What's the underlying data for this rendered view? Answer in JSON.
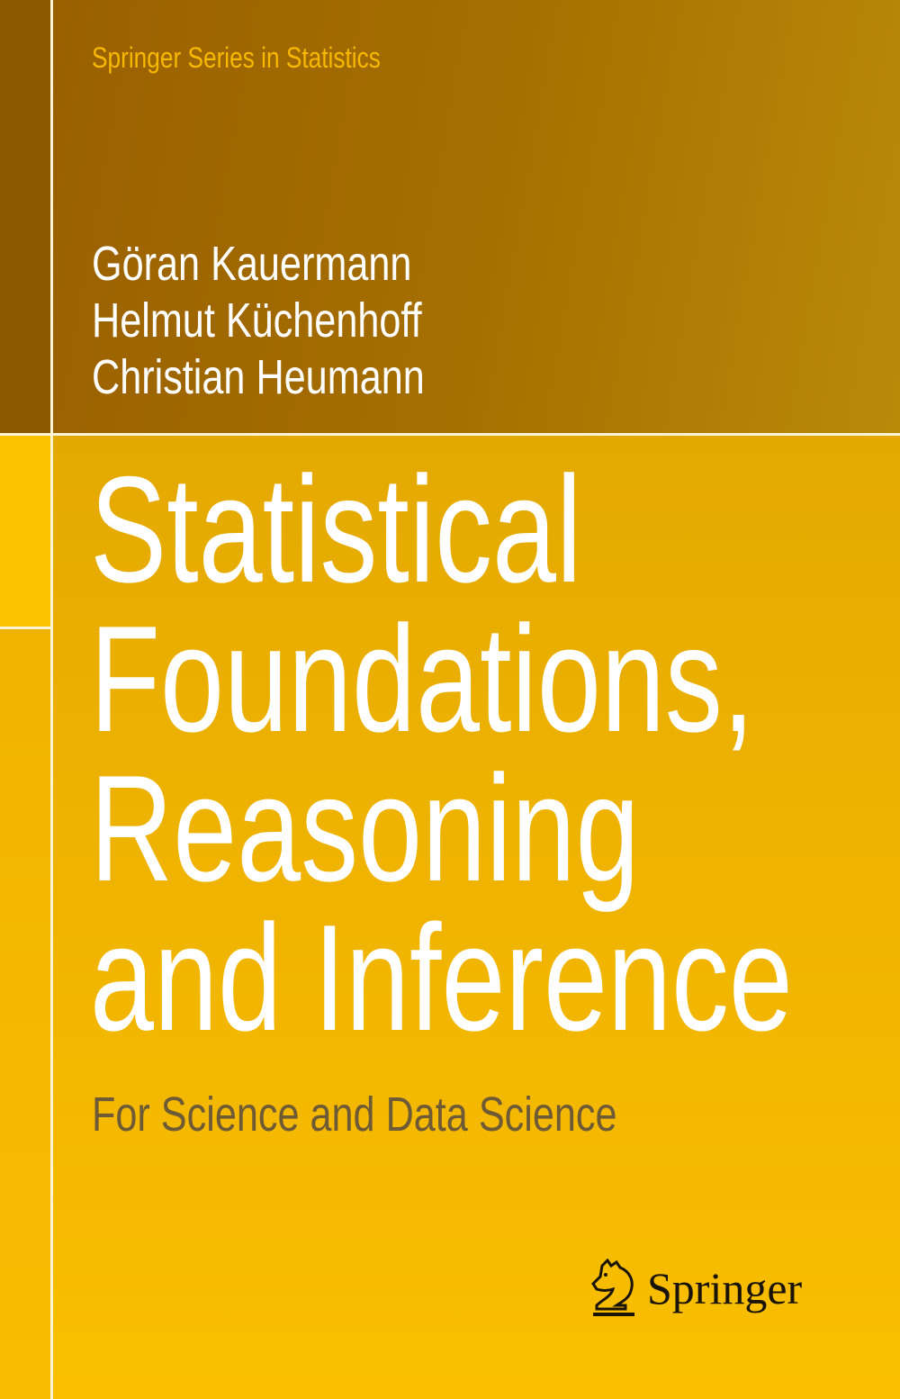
{
  "series": "Springer Series in Statistics",
  "authors": [
    "Göran Kauermann",
    "Helmut Küchenhoff",
    "Christian Heumann"
  ],
  "title_lines": [
    "Statistical",
    "Foundations,",
    "Reasoning",
    "and Inference"
  ],
  "subtitle": "For Science and Data Science",
  "publisher": {
    "name": "Springer",
    "icon": "chess-knight-icon"
  },
  "colors": {
    "top_band": "#9a6000",
    "main": "#f0b400",
    "accent_left": "#fcc300",
    "series_text": "#f6b800",
    "subtitle_text": "#6e5b36"
  }
}
